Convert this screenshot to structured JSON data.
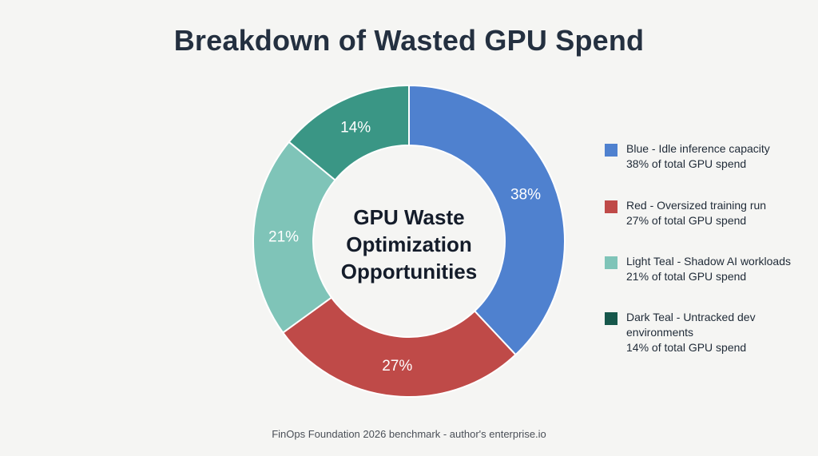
{
  "title": "Breakdown of Wasted GPU Spend",
  "center_label": [
    "GPU Waste",
    "Optimization",
    "Opportunities"
  ],
  "legend": [
    {
      "color": "#4f81cf",
      "lines": [
        "Blue - Idle inference capacity",
        "38% of total GPU spend"
      ]
    },
    {
      "color": "#bf4a48",
      "lines": [
        "Red - Oversized training run",
        "27% of total GPU spend"
      ]
    },
    {
      "color": "#7fc4b8",
      "lines": [
        "Light Teal - Shadow AI workloads",
        "21% of total GPU spend"
      ]
    },
    {
      "color": "#16574b",
      "lines": [
        "Dark Teal - Untracked dev",
        "environments",
        "14% of total GPU spend"
      ]
    }
  ],
  "source": "FinOps Foundation 2026 benchmark - author's enterprise.io",
  "chart_data": {
    "type": "pie",
    "donut": true,
    "categories": [
      "Idle inference capacity",
      "Oversized training run",
      "Shadow AI workloads",
      "Untracked dev environments"
    ],
    "values": [
      38,
      27,
      21,
      14
    ],
    "labels": [
      "38%",
      "27%",
      "21%",
      "14%"
    ],
    "colors": [
      "#4f81cf",
      "#bf4a48",
      "#7fc4b8",
      "#3a9685"
    ],
    "start_angle": "12 o'clock",
    "direction": "clockwise",
    "legend_position": "right"
  }
}
